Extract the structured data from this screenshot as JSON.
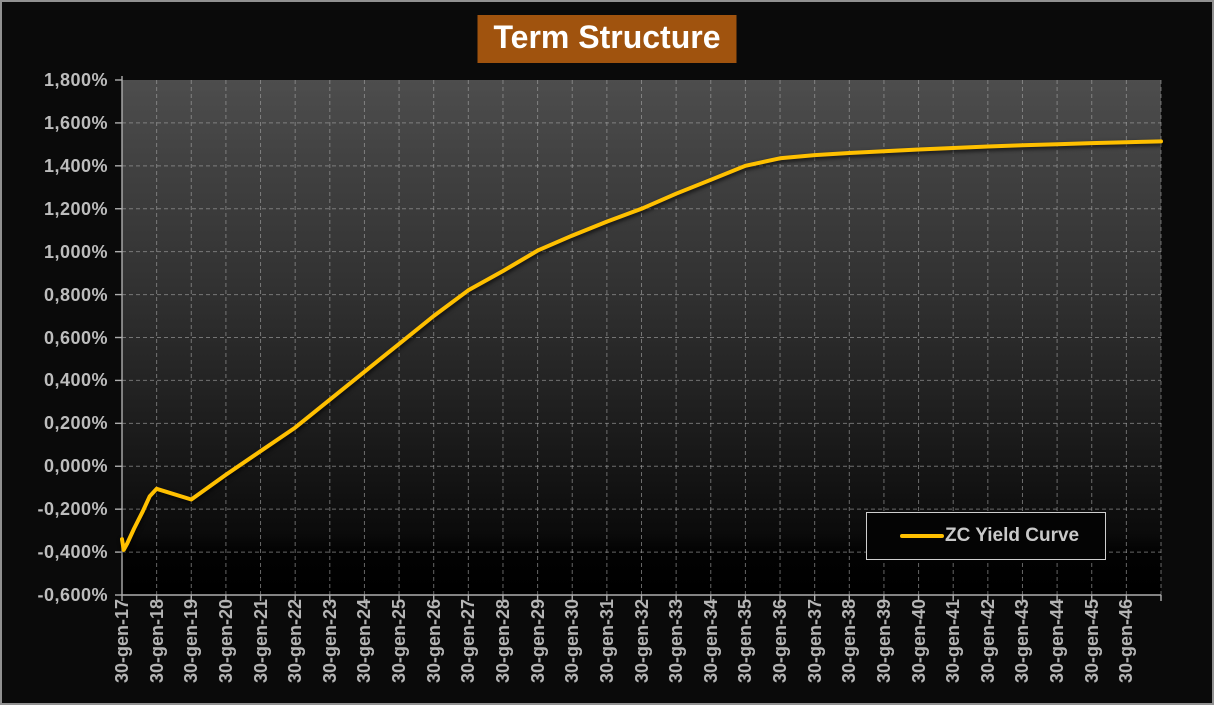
{
  "title": {
    "text": "Term Structure",
    "bg_color": "#a0530e",
    "text_color": "#ffffff"
  },
  "legend": {
    "label": "ZC Yield Curve",
    "line_color": "#ffc000",
    "position": "inside-bottom-right"
  },
  "colors": {
    "background": "#0a0a0a",
    "frame_border": "#919191",
    "axis": "#aeaeae",
    "gridline": "#a3a3a3",
    "tick_label": "#bdbdbd",
    "curve": "#ffc000"
  },
  "chart_data": {
    "type": "line",
    "title": "Term Structure",
    "xlabel": "",
    "ylabel": "",
    "grid": "dashed-both-axes",
    "legend_position": "inside-bottom-right",
    "y_unit": "%",
    "ylim": [
      -0.6,
      1.8
    ],
    "x_range_years": [
      0,
      30
    ],
    "y_ticks": [
      {
        "value": 1.8,
        "label": "1,800%"
      },
      {
        "value": 1.6,
        "label": "1,600%"
      },
      {
        "value": 1.4,
        "label": "1,400%"
      },
      {
        "value": 1.2,
        "label": "1,200%"
      },
      {
        "value": 1.0,
        "label": "1,000%"
      },
      {
        "value": 0.8,
        "label": "0,800%"
      },
      {
        "value": 0.6,
        "label": "0,600%"
      },
      {
        "value": 0.4,
        "label": "0,400%"
      },
      {
        "value": 0.2,
        "label": "0,200%"
      },
      {
        "value": 0.0,
        "label": "0,000%"
      },
      {
        "value": -0.2,
        "label": "-0,200%"
      },
      {
        "value": -0.4,
        "label": "-0,400%"
      },
      {
        "value": -0.6,
        "label": "-0,600%"
      }
    ],
    "x_tick_labels": [
      "30-gen-17",
      "30-gen-18",
      "30-gen-19",
      "30-gen-20",
      "30-gen-21",
      "30-gen-22",
      "30-gen-23",
      "30-gen-24",
      "30-gen-25",
      "30-gen-26",
      "30-gen-27",
      "30-gen-28",
      "30-gen-29",
      "30-gen-30",
      "30-gen-31",
      "30-gen-32",
      "30-gen-33",
      "30-gen-34",
      "30-gen-35",
      "30-gen-36",
      "30-gen-37",
      "30-gen-38",
      "30-gen-39",
      "30-gen-40",
      "30-gen-41",
      "30-gen-42",
      "30-gen-43",
      "30-gen-44",
      "30-gen-45",
      "30-gen-46"
    ],
    "series": [
      {
        "name": "ZC Yield Curve",
        "color": "#ffc000",
        "points_years_vs_percent": [
          [
            0,
            -0.34
          ],
          [
            0.05,
            -0.39
          ],
          [
            0.15,
            -0.36
          ],
          [
            0.35,
            -0.29
          ],
          [
            0.6,
            -0.21
          ],
          [
            0.8,
            -0.14
          ],
          [
            1,
            -0.105
          ],
          [
            2,
            -0.155
          ],
          [
            3,
            -0.04
          ],
          [
            4,
            0.07
          ],
          [
            5,
            0.18
          ],
          [
            6,
            0.31
          ],
          [
            7,
            0.44
          ],
          [
            8,
            0.57
          ],
          [
            9,
            0.7
          ],
          [
            10,
            0.82
          ],
          [
            11,
            0.91
          ],
          [
            12,
            1.005
          ],
          [
            13,
            1.075
          ],
          [
            14,
            1.14
          ],
          [
            15,
            1.2
          ],
          [
            16,
            1.27
          ],
          [
            17,
            1.335
          ],
          [
            18,
            1.4
          ],
          [
            19,
            1.435
          ],
          [
            20,
            1.45
          ],
          [
            21,
            1.46
          ],
          [
            22,
            1.468
          ],
          [
            23,
            1.476
          ],
          [
            24,
            1.483
          ],
          [
            25,
            1.49
          ],
          [
            26,
            1.496
          ],
          [
            27,
            1.501
          ],
          [
            28,
            1.506
          ],
          [
            29,
            1.51
          ],
          [
            30,
            1.514
          ]
        ]
      }
    ],
    "plot_gradient": [
      [
        0,
        "#4d4d4d"
      ],
      [
        0.18,
        "#404040"
      ],
      [
        0.38,
        "#333333"
      ],
      [
        0.58,
        "#242424"
      ],
      [
        0.75,
        "#161616"
      ],
      [
        0.88,
        "#0b0b0b"
      ],
      [
        0.92,
        "#020202"
      ],
      [
        1,
        "#000000"
      ]
    ]
  }
}
